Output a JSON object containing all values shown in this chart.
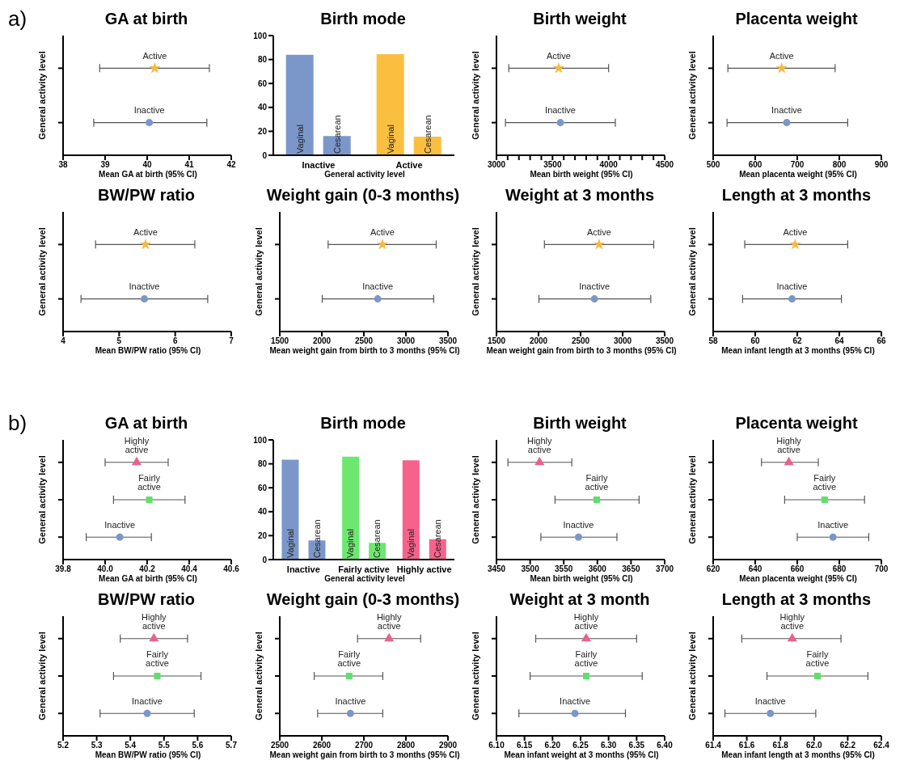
{
  "chart_data": [
    {
      "type": "scatter",
      "title": "GA at birth",
      "xlabel": "Mean GA at birth  (95% CI)",
      "ylabel": "General activity level",
      "annotations": [
        "a)"
      ],
      "orientation": "horizontal",
      "categories": [
        null,
        null
      ],
      "xlim": [
        38,
        42
      ],
      "xticks": [
        38,
        39,
        40,
        41,
        42
      ],
      "tick_labels": "x",
      "series": [
        {
          "name": "Active",
          "color": "#f5b942",
          "marker": "star",
          "values": [
            40.18,
            null
          ],
          "errors": [
            [
              38.87,
              41.48
            ],
            null
          ]
        },
        {
          "name": "Inactive",
          "color": "#7b97c9",
          "marker": "circle",
          "values": [
            null,
            40.05
          ],
          "errors": [
            null,
            [
              38.73,
              41.42
            ]
          ]
        }
      ]
    },
    {
      "type": "bar",
      "title": "Birth mode",
      "xlabel": "General activity level",
      "categories": [
        "Inactive",
        "Active"
      ],
      "ylim": [
        0,
        100
      ],
      "yticks": [
        0,
        20,
        40,
        60,
        80,
        100
      ],
      "series": [
        {
          "name": "Vaginal",
          "colors": [
            "#7b97c9",
            "#fbbf3f"
          ],
          "values": [
            84,
            84.5
          ]
        },
        {
          "name": "Cesarean",
          "colors": [
            "#7b97c9",
            "#fbbf3f"
          ],
          "values": [
            16,
            15.5
          ]
        }
      ]
    },
    {
      "type": "scatter",
      "title": "Birth weight",
      "xlabel": "Mean birth weight (95% CI)",
      "ylabel": "General activity level",
      "orientation": "horizontal",
      "categories": [
        null,
        null
      ],
      "xlim": [
        3000,
        4500
      ],
      "xticks": [
        3000,
        {
          "value": 3100,
          "label": null
        },
        {
          "value": 3200,
          "label": null
        },
        {
          "value": 3300,
          "label": null
        },
        {
          "value": 3400,
          "label": null
        },
        3500,
        {
          "value": 3600,
          "label": null
        },
        {
          "value": 3700,
          "label": null
        },
        {
          "value": 3800,
          "label": null
        },
        {
          "value": 3900,
          "label": null
        },
        4000,
        {
          "value": 4100,
          "label": null
        },
        {
          "value": 4200,
          "label": null
        },
        {
          "value": 4300,
          "label": null
        },
        {
          "value": 4400,
          "label": null
        },
        4500
      ],
      "tick_labels": "x",
      "series": [
        {
          "name": "Active",
          "color": "#f5b942",
          "marker": "star",
          "values": [
            3555,
            null
          ],
          "errors": [
            [
              3110,
              4000
            ],
            null
          ]
        },
        {
          "name": "Inactive",
          "color": "#7b97c9",
          "marker": "circle",
          "values": [
            null,
            3570
          ],
          "errors": [
            null,
            [
              3080,
              4060
            ]
          ]
        }
      ]
    },
    {
      "type": "scatter",
      "title": "Placenta weight",
      "xlabel": "Mean placenta weight (95% CI)",
      "ylabel": "General activity level",
      "orientation": "horizontal",
      "categories": [
        null,
        null
      ],
      "xlim": [
        500,
        900
      ],
      "xticks": [
        500,
        600,
        700,
        800,
        900
      ],
      "tick_labels": "x",
      "series": [
        {
          "name": "Active",
          "color": "#f5b942",
          "marker": "star",
          "values": [
            663,
            null
          ],
          "errors": [
            [
              535,
              790
            ],
            null
          ]
        },
        {
          "name": "Inactive",
          "color": "#7b97c9",
          "marker": "circle",
          "values": [
            null,
            675
          ],
          "errors": [
            null,
            [
              533,
              820
            ]
          ]
        }
      ]
    },
    {
      "type": "scatter",
      "title": "BW/PW ratio",
      "xlabel": "Mean BW/PW ratio (95% CI)",
      "ylabel": "General activity level",
      "orientation": "horizontal",
      "categories": [
        null,
        null
      ],
      "xlim": [
        4,
        7
      ],
      "xticks": [
        4,
        5,
        6,
        7
      ],
      "tick_labels": "x",
      "series": [
        {
          "name": "Active",
          "color": "#f5b942",
          "marker": "star",
          "values": [
            5.47,
            null
          ],
          "errors": [
            [
              4.58,
              6.35
            ],
            null
          ]
        },
        {
          "name": "Inactive",
          "color": "#7b97c9",
          "marker": "circle",
          "values": [
            null,
            5.45
          ],
          "errors": [
            null,
            [
              4.32,
              6.58
            ]
          ]
        }
      ]
    },
    {
      "type": "scatter",
      "title": "Weight gain (0-3 months)",
      "xlabel": "Mean weight gain from birth to 3 months (95% CI)",
      "ylabel": "General activity level",
      "orientation": "horizontal",
      "categories": [
        null,
        null
      ],
      "xlim": [
        1500,
        3500
      ],
      "xticks": [
        1500,
        2000,
        2500,
        3000,
        3500
      ],
      "tick_labels": "x",
      "series": [
        {
          "name": "Active",
          "color": "#f5b942",
          "marker": "star",
          "values": [
            2720,
            null
          ],
          "errors": [
            [
              2075,
              3360
            ],
            null
          ]
        },
        {
          "name": "Inactive",
          "color": "#7b97c9",
          "marker": "circle",
          "values": [
            null,
            2665
          ],
          "errors": [
            null,
            [
              2005,
              3330
            ]
          ]
        }
      ]
    },
    {
      "type": "scatter",
      "title": "Weight at 3 months",
      "xlabel": "Mean weight gain from birth to 3 months (95% CI)",
      "ylabel": "General activity level",
      "orientation": "horizontal",
      "categories": [
        null,
        null
      ],
      "xlim": [
        1500,
        3500
      ],
      "xticks": [
        1500,
        2000,
        2500,
        3000,
        3500
      ],
      "tick_labels": "x",
      "series": [
        {
          "name": "Active",
          "color": "#f5b942",
          "marker": "star",
          "values": [
            2720,
            null
          ],
          "errors": [
            [
              2070,
              3370
            ],
            null
          ]
        },
        {
          "name": "Inactive",
          "color": "#7b97c9",
          "marker": "circle",
          "values": [
            null,
            2665
          ],
          "errors": [
            null,
            [
              2005,
              3335
            ]
          ]
        }
      ]
    },
    {
      "type": "scatter",
      "title": "Length at 3 months",
      "xlabel": "Mean infant length at 3 months (95% CI)",
      "ylabel": "General activity level",
      "orientation": "horizontal",
      "categories": [
        null,
        null
      ],
      "xlim": [
        58,
        66
      ],
      "xticks": [
        58,
        60,
        62,
        64,
        66
      ],
      "tick_labels": "x",
      "series": [
        {
          "name": "Active",
          "color": "#f5b942",
          "marker": "star",
          "values": [
            61.9,
            null
          ],
          "errors": [
            [
              59.5,
              64.4
            ],
            null
          ]
        },
        {
          "name": "Inactive",
          "color": "#7b97c9",
          "marker": "circle",
          "values": [
            null,
            61.75
          ],
          "errors": [
            null,
            [
              59.4,
              64.1
            ]
          ]
        }
      ]
    },
    {
      "type": "scatter",
      "title": "GA at birth",
      "xlabel": "Mean GA at birth  (95% CI)",
      "ylabel": "General activity level",
      "annotations": [
        "b)"
      ],
      "orientation": "horizontal",
      "categories": [
        null,
        null,
        null
      ],
      "xlim": [
        39.8,
        40.6
      ],
      "xticks": [
        39.8,
        {
          "value": 40,
          "label": "40.0"
        },
        40.2,
        40.4,
        40.6
      ],
      "tick_labels": "x",
      "series": [
        {
          "name": "Highly active",
          "color": "#e8628f",
          "marker": "triangle",
          "values": [
            40.15,
            null,
            null
          ],
          "errors": [
            [
              40.0,
              40.3
            ],
            null,
            null
          ]
        },
        {
          "name": "Fairly active",
          "color": "#5ee06a",
          "marker": "square",
          "values": [
            null,
            40.21,
            null
          ],
          "errors": [
            null,
            [
              40.04,
              40.38
            ],
            null
          ]
        },
        {
          "name": "Inactive",
          "color": "#7b97c9",
          "marker": "circle",
          "values": [
            null,
            null,
            40.07
          ],
          "errors": [
            null,
            null,
            [
              39.91,
              40.22
            ]
          ]
        }
      ]
    },
    {
      "type": "bar",
      "title": "Birth mode",
      "xlabel": "General activity level",
      "categories": [
        "Inactive",
        "Fairly active",
        "Highly active"
      ],
      "ylim": [
        0,
        100
      ],
      "yticks": [
        0,
        20,
        40,
        60,
        80,
        100
      ],
      "series": [
        {
          "name": "Vaginal",
          "colors": [
            "#7b97c9",
            "#6de86f",
            "#f6628c"
          ],
          "values": [
            83.5,
            86,
            83
          ]
        },
        {
          "name": "Cesarean",
          "colors": [
            "#7b97c9",
            "#6de86f",
            "#f6628c"
          ],
          "values": [
            16,
            14,
            17
          ]
        }
      ]
    },
    {
      "type": "scatter",
      "title": "Birth weight",
      "xlabel": "Mean birth weight (95% CI)",
      "ylabel": "General activity level",
      "orientation": "horizontal",
      "categories": [
        null,
        null,
        null
      ],
      "xlim": [
        3450,
        3700
      ],
      "xticks": [
        3450,
        3500,
        3550,
        3600,
        3650,
        3700
      ],
      "tick_labels": "x",
      "series": [
        {
          "name": "Highly active",
          "color": "#e8628f",
          "marker": "triangle",
          "values": [
            3514,
            null,
            null
          ],
          "errors": [
            [
              3467,
              3562
            ],
            null,
            null
          ]
        },
        {
          "name": "Fairly active",
          "color": "#5ee06a",
          "marker": "square",
          "values": [
            null,
            3599,
            null
          ],
          "errors": [
            null,
            [
              3537,
              3662
            ],
            null
          ]
        },
        {
          "name": "Inactive",
          "color": "#7b97c9",
          "marker": "circle",
          "values": [
            null,
            null,
            3572
          ],
          "errors": [
            null,
            null,
            [
              3516,
              3629
            ]
          ]
        }
      ]
    },
    {
      "type": "scatter",
      "title": "Placenta weight",
      "xlabel": "Mean placenta weight (95% CI)",
      "ylabel": "General activity level",
      "orientation": "horizontal",
      "categories": [
        null,
        null,
        null
      ],
      "xlim": [
        620,
        700
      ],
      "xticks": [
        620,
        640,
        660,
        680,
        700
      ],
      "tick_labels": "x",
      "series": [
        {
          "name": "Highly active",
          "color": "#e8628f",
          "marker": "triangle",
          "values": [
            656,
            null,
            null
          ],
          "errors": [
            [
              643,
              670
            ],
            null,
            null
          ]
        },
        {
          "name": "Fairly active",
          "color": "#5ee06a",
          "marker": "square",
          "values": [
            null,
            673,
            null
          ],
          "errors": [
            null,
            [
              654,
              692
            ],
            null
          ]
        },
        {
          "name": "Inactive",
          "color": "#7b97c9",
          "marker": "circle",
          "values": [
            null,
            null,
            677
          ],
          "errors": [
            null,
            null,
            [
              660,
              694
            ]
          ]
        }
      ]
    },
    {
      "type": "scatter",
      "title": "BW/PW ratio",
      "xlabel": "Mean BW/PW ratio (95% CI)",
      "ylabel": "General activity level",
      "orientation": "horizontal",
      "categories": [
        null,
        null,
        null
      ],
      "xlim": [
        5.2,
        5.7
      ],
      "xticks": [
        5.2,
        5.3,
        5.4,
        5.5,
        5.6,
        5.7
      ],
      "tick_labels": "x",
      "series": [
        {
          "name": "Highly active",
          "color": "#e8628f",
          "marker": "triangle",
          "values": [
            5.47,
            null,
            null
          ],
          "errors": [
            [
              5.37,
              5.57
            ],
            null,
            null
          ]
        },
        {
          "name": "Fairly active",
          "color": "#5ee06a",
          "marker": "square",
          "values": [
            null,
            5.48,
            null
          ],
          "errors": [
            null,
            [
              5.35,
              5.61
            ],
            null
          ]
        },
        {
          "name": "Inactive",
          "color": "#7b97c9",
          "marker": "circle",
          "values": [
            null,
            null,
            5.45
          ],
          "errors": [
            null,
            null,
            [
              5.31,
              5.59
            ]
          ]
        }
      ]
    },
    {
      "type": "scatter",
      "title": "Weight gain (0-3 months)",
      "xlabel": "Mean weight gain from birth to 3 months (95% CI)",
      "ylabel": "General activity level",
      "orientation": "horizontal",
      "categories": [
        null,
        null,
        null
      ],
      "xlim": [
        2500,
        2900
      ],
      "xticks": [
        2500,
        2600,
        2700,
        2800,
        2900
      ],
      "tick_labels": "x",
      "series": [
        {
          "name": "Highly active",
          "color": "#e8628f",
          "marker": "triangle",
          "values": [
            2760,
            null,
            null
          ],
          "errors": [
            [
              2685,
              2835
            ],
            null,
            null
          ]
        },
        {
          "name": "Fairly active",
          "color": "#5ee06a",
          "marker": "square",
          "values": [
            null,
            2665,
            null
          ],
          "errors": [
            null,
            [
              2582,
              2745
            ],
            null
          ]
        },
        {
          "name": "Inactive",
          "color": "#7b97c9",
          "marker": "circle",
          "values": [
            null,
            null,
            2668
          ],
          "errors": [
            null,
            null,
            [
              2590,
              2745
            ]
          ]
        }
      ]
    },
    {
      "type": "scatter",
      "title": "Weight at 3 month",
      "xlabel": "Mean infant weight at 3 months (95% CI)",
      "ylabel": "General activity level",
      "orientation": "horizontal",
      "categories": [
        null,
        null,
        null
      ],
      "xlim": [
        6.1,
        6.4
      ],
      "xticks": [
        {
          "value": 6.1,
          "label": "6.10"
        },
        6.15,
        {
          "value": 6.2,
          "label": "6.20"
        },
        6.25,
        {
          "value": 6.3,
          "label": "6.30"
        },
        6.35,
        {
          "value": 6.4,
          "label": "6.40"
        }
      ],
      "tick_labels": "x",
      "series": [
        {
          "name": "Highly active",
          "color": "#e8628f",
          "marker": "triangle",
          "values": [
            6.26,
            null,
            null
          ],
          "errors": [
            [
              6.17,
              6.35
            ],
            null,
            null
          ]
        },
        {
          "name": "Fairly active",
          "color": "#5ee06a",
          "marker": "square",
          "values": [
            null,
            6.26,
            null
          ],
          "errors": [
            null,
            [
              6.16,
              6.36
            ],
            null
          ]
        },
        {
          "name": "Inactive",
          "color": "#7b97c9",
          "marker": "circle",
          "values": [
            null,
            null,
            6.24
          ],
          "errors": [
            null,
            null,
            [
              6.14,
              6.33
            ]
          ]
        }
      ]
    },
    {
      "type": "scatter",
      "title": "Length at 3 months",
      "xlabel": "Mean infant length at 3 months (95% CI)",
      "ylabel": "General activity level",
      "orientation": "horizontal",
      "categories": [
        null,
        null,
        null
      ],
      "xlim": [
        61.4,
        62.4
      ],
      "xticks": [
        61.4,
        61.6,
        61.8,
        {
          "value": 62,
          "label": "62.0"
        },
        62.2,
        62.4
      ],
      "tick_labels": "x",
      "series": [
        {
          "name": "Highly active",
          "color": "#e8628f",
          "marker": "triangle",
          "values": [
            61.87,
            null,
            null
          ],
          "errors": [
            [
              61.57,
              62.16
            ],
            null,
            null
          ]
        },
        {
          "name": "Fairly active",
          "color": "#5ee06a",
          "marker": "square",
          "values": [
            null,
            62.02,
            null
          ],
          "errors": [
            null,
            [
              61.72,
              62.32
            ],
            null
          ]
        },
        {
          "name": "Inactive",
          "color": "#7b97c9",
          "marker": "circle",
          "values": [
            null,
            null,
            61.74
          ],
          "errors": [
            null,
            null,
            [
              61.47,
              62.01
            ]
          ]
        }
      ]
    }
  ]
}
